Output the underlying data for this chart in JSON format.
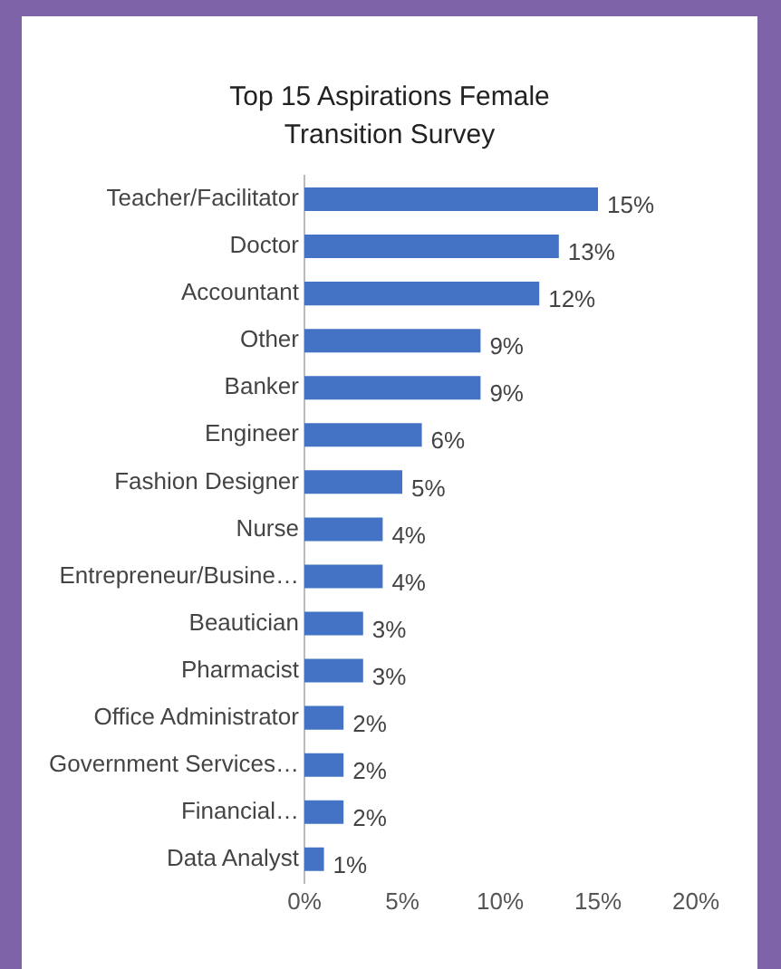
{
  "chart_data": {
    "type": "bar",
    "orientation": "horizontal",
    "title": "Top 15 Aspirations Female Transition Survey",
    "categories": [
      "Teacher/Facilitator",
      "Doctor",
      "Accountant",
      "Other",
      "Banker",
      "Engineer",
      "Fashion Designer",
      "Nurse",
      "Entrepreneur/Busine…",
      "Beautician",
      "Pharmacist",
      "Office Administrator",
      "Government Services…",
      "Financial…",
      "Data Analyst"
    ],
    "values": [
      15,
      13,
      12,
      9,
      9,
      6,
      5,
      4,
      4,
      3,
      3,
      2,
      2,
      2,
      1
    ],
    "color": "#4472c4",
    "xlim": [
      0,
      20
    ],
    "xticks": [
      {
        "value": 0,
        "label": "0%"
      },
      {
        "value": 5,
        "label": "5%"
      },
      {
        "value": 10,
        "label": "10%"
      },
      {
        "value": 15,
        "label": "15%"
      },
      {
        "value": 20,
        "label": "20%"
      }
    ],
    "value_labels": [
      "15%",
      "13%",
      "12%",
      "9%",
      "9%",
      "6%",
      "5%",
      "4%",
      "4%",
      "3%",
      "3%",
      "2%",
      "2%",
      "2%",
      "1%"
    ],
    "grid": false,
    "legend": false
  }
}
